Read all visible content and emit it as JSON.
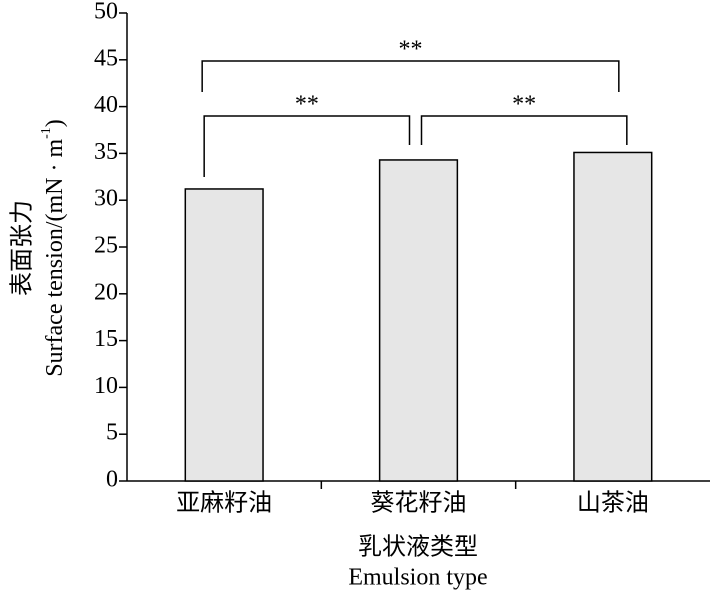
{
  "chart_data": {
    "type": "bar",
    "categories": [
      "亚麻籽油",
      "葵花籽油",
      "山茶油"
    ],
    "values": [
      31.2,
      34.3,
      35.1
    ],
    "color": "#e6e6e6",
    "ylim": [
      0,
      50
    ],
    "yticks": [
      0,
      5,
      10,
      15,
      20,
      25,
      30,
      35,
      40,
      45,
      50
    ],
    "x_label": [
      "乳状液类型",
      "Emulsion type"
    ],
    "y_label_cn": "表面张力",
    "y_label_en": [
      "Surface tension/(mN · m",
      "-1",
      ")"
    ],
    "annotations": [
      "**",
      "**",
      "**"
    ]
  }
}
